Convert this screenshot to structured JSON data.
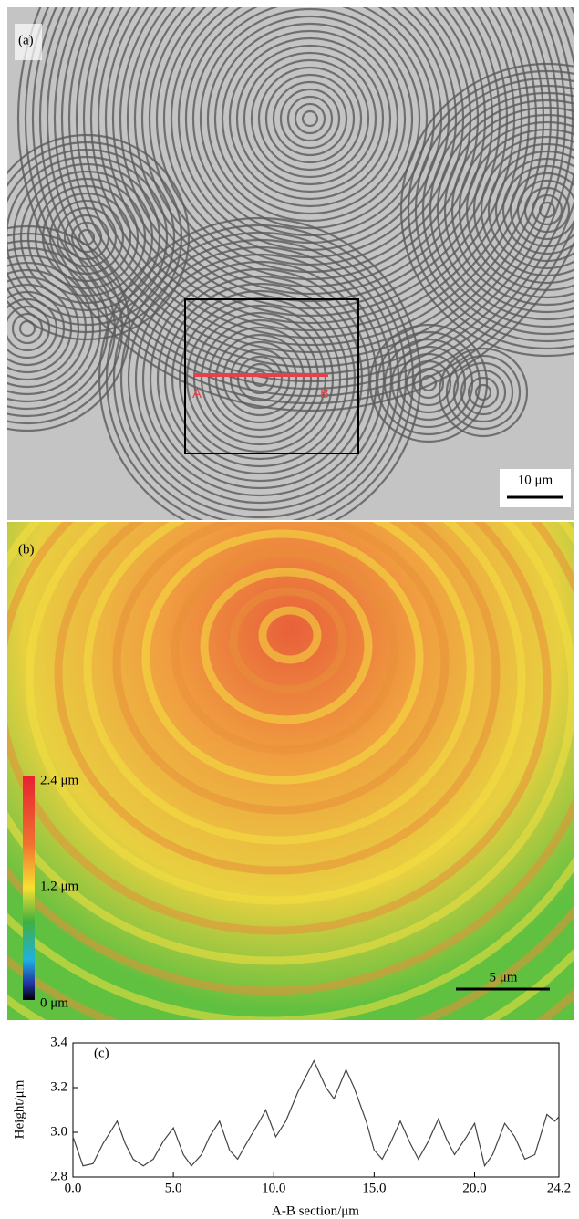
{
  "panel_a": {
    "label": "(a)",
    "point_a": "A",
    "point_b": "B",
    "scale_bar": "10 μm"
  },
  "panel_b": {
    "label": "(b)",
    "colorbar_top": "2.4 μm",
    "colorbar_mid": "1.2 μm",
    "colorbar_bottom": "0 μm",
    "scale_bar": "5 μm"
  },
  "chart_data": {
    "type": "line",
    "panel_label": "(c)",
    "x_label": "A-B section/μm",
    "y_label": "Height/μm",
    "xlim": [
      0,
      24.2
    ],
    "xticks": [
      {
        "value": 0,
        "label": "0.0"
      },
      {
        "value": 5,
        "label": "5.0"
      },
      {
        "value": 10,
        "label": "10.0"
      },
      {
        "value": 15,
        "label": "15.0"
      },
      {
        "value": 20,
        "label": "20.0"
      },
      {
        "value": 24.2,
        "label": "24.2"
      }
    ],
    "ylim": [
      2.8,
      3.4
    ],
    "yticks": [
      {
        "value": 2.8,
        "label": "2.8"
      },
      {
        "value": 3.0,
        "label": "3.0"
      },
      {
        "value": 3.2,
        "label": "3.2"
      },
      {
        "value": 3.4,
        "label": "3.4"
      }
    ],
    "series": [
      {
        "color": "#444444",
        "x": [
          0.0,
          0.5,
          1.0,
          1.5,
          2.2,
          2.6,
          3.0,
          3.5,
          4.0,
          4.5,
          5.0,
          5.5,
          5.9,
          6.4,
          6.8,
          7.3,
          7.8,
          8.2,
          8.7,
          9.3,
          9.6,
          10.1,
          10.6,
          11.2,
          12.0,
          12.6,
          13.0,
          13.6,
          14.0,
          14.6,
          15.0,
          15.4,
          15.8,
          16.3,
          16.8,
          17.2,
          17.7,
          18.2,
          18.6,
          19.0,
          19.6,
          20.0,
          20.5,
          20.9,
          21.5,
          22.0,
          22.5,
          23.0,
          23.6,
          24.0,
          24.2
        ],
        "values": [
          2.98,
          2.85,
          2.86,
          2.95,
          3.05,
          2.95,
          2.88,
          2.85,
          2.88,
          2.96,
          3.02,
          2.9,
          2.85,
          2.9,
          2.98,
          3.05,
          2.92,
          2.88,
          2.96,
          3.05,
          3.1,
          2.98,
          3.05,
          3.18,
          3.32,
          3.2,
          3.15,
          3.28,
          3.2,
          3.05,
          2.92,
          2.88,
          2.95,
          3.05,
          2.95,
          2.88,
          2.96,
          3.06,
          2.97,
          2.9,
          2.98,
          3.04,
          2.85,
          2.9,
          3.04,
          2.98,
          2.88,
          2.9,
          3.08,
          3.05,
          3.07
        ]
      }
    ]
  }
}
